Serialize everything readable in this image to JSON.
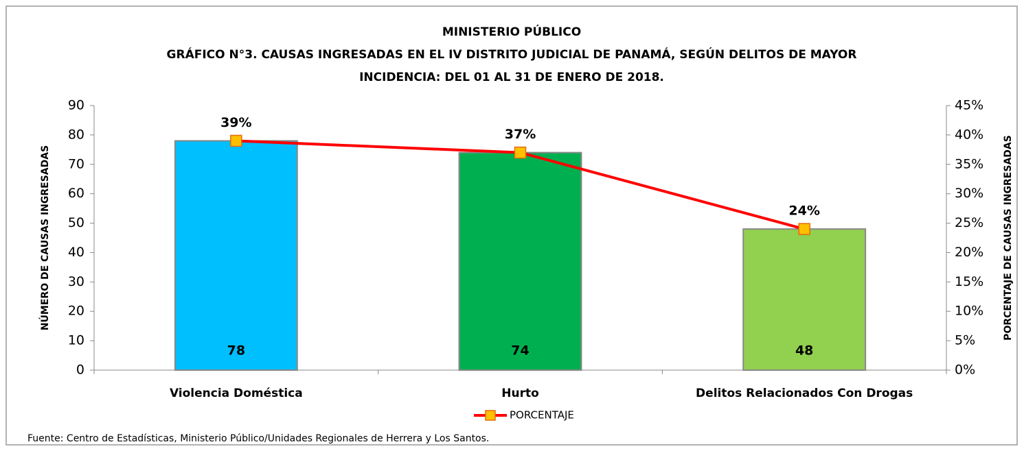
{
  "chart_data": {
    "type": "bar",
    "title": [
      "MINISTERIO PÚBLICO",
      "GRÁFICO N°3. CAUSAS INGRESADAS EN EL IV DISTRITO JUDICIAL DE PANAMÁ, SEGÚN DELITOS DE MAYOR",
      "INCIDENCIA: DEL 01 AL 31 DE ENERO DE 2018."
    ],
    "ylabel": "NÚMERO DE CAUSAS INGRESADAS",
    "y2label": "PORCENTAJE DE CAUSAS INGRESADAS",
    "categories": [
      "Violencia Doméstica",
      "Hurto",
      "Delitos Relacionados Con Drogas"
    ],
    "values": [
      78,
      74,
      48
    ],
    "colors": [
      "#00bfff",
      "#00b050",
      "#92d050"
    ],
    "line": {
      "name": "PORCENTAJE",
      "axis": "y2",
      "color": "#ff0000",
      "marker_color": "#ffc000",
      "values": [
        39,
        37,
        24
      ],
      "value_labels": [
        "39%",
        "37%",
        "24%"
      ]
    },
    "ylim": [
      0,
      90
    ],
    "yticks": [
      0,
      10,
      20,
      30,
      40,
      50,
      60,
      70,
      80,
      90
    ],
    "y2lim": [
      0,
      45
    ],
    "y2ticks": [
      {
        "value": 0,
        "label": "0%"
      },
      {
        "value": 5,
        "label": "5%"
      },
      {
        "value": 10,
        "label": "10%"
      },
      {
        "value": 15,
        "label": "15%"
      },
      {
        "value": 20,
        "label": "20%"
      },
      {
        "value": 25,
        "label": "25%"
      },
      {
        "value": 30,
        "label": "30%"
      },
      {
        "value": 35,
        "label": "35%"
      },
      {
        "value": 40,
        "label": "40%"
      },
      {
        "value": 45,
        "label": "45%"
      }
    ],
    "grid": false,
    "legend": "bottom",
    "source": "Fuente: Centro de Estadísticas, Ministerio Público/Unidades Regionales de Herrera y Los Santos."
  }
}
